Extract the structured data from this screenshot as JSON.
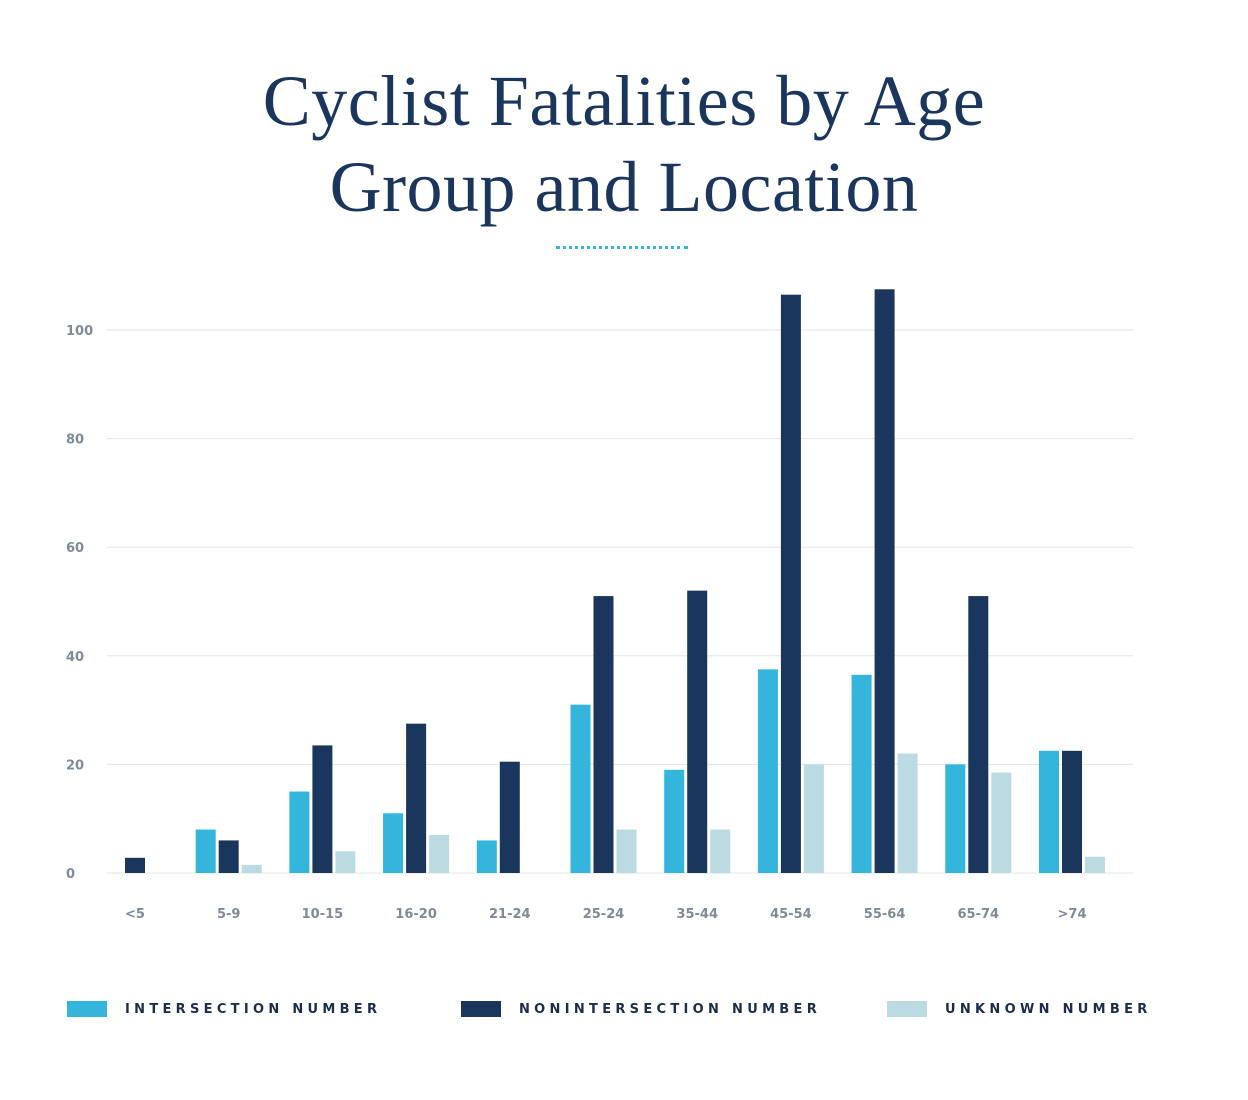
{
  "chart_data": {
    "type": "bar",
    "title_lines": [
      "Cyclist Fatalities by Age",
      "Group and Location"
    ],
    "categories": [
      "<5",
      "5-9",
      "10-15",
      "16-20",
      "21-24",
      "25-24",
      "35-44",
      "45-54",
      "55-64",
      "65-74",
      ">74"
    ],
    "series": [
      {
        "name": "INTERSECTION NUMBER",
        "color": "#33b5dc",
        "values": [
          0,
          8,
          15,
          11,
          6,
          31,
          19,
          37.5,
          36.5,
          20,
          22.5
        ]
      },
      {
        "name": "NONINTERSECTION NUMBER",
        "color": "#1b365d",
        "values": [
          2.8,
          6,
          23.5,
          27.5,
          20.5,
          51,
          52,
          106.5,
          107.5,
          51,
          22.5
        ]
      },
      {
        "name": "UNKNOWN NUMBER",
        "color": "#bcdae1",
        "values": [
          0,
          1.5,
          4,
          7,
          0,
          8,
          8,
          20,
          22,
          18.5,
          3
        ]
      }
    ],
    "yticks": [
      0,
      20,
      40,
      60,
      80,
      100
    ],
    "ylim": [
      0,
      110
    ],
    "grid": true,
    "legend_position": "bottom"
  }
}
